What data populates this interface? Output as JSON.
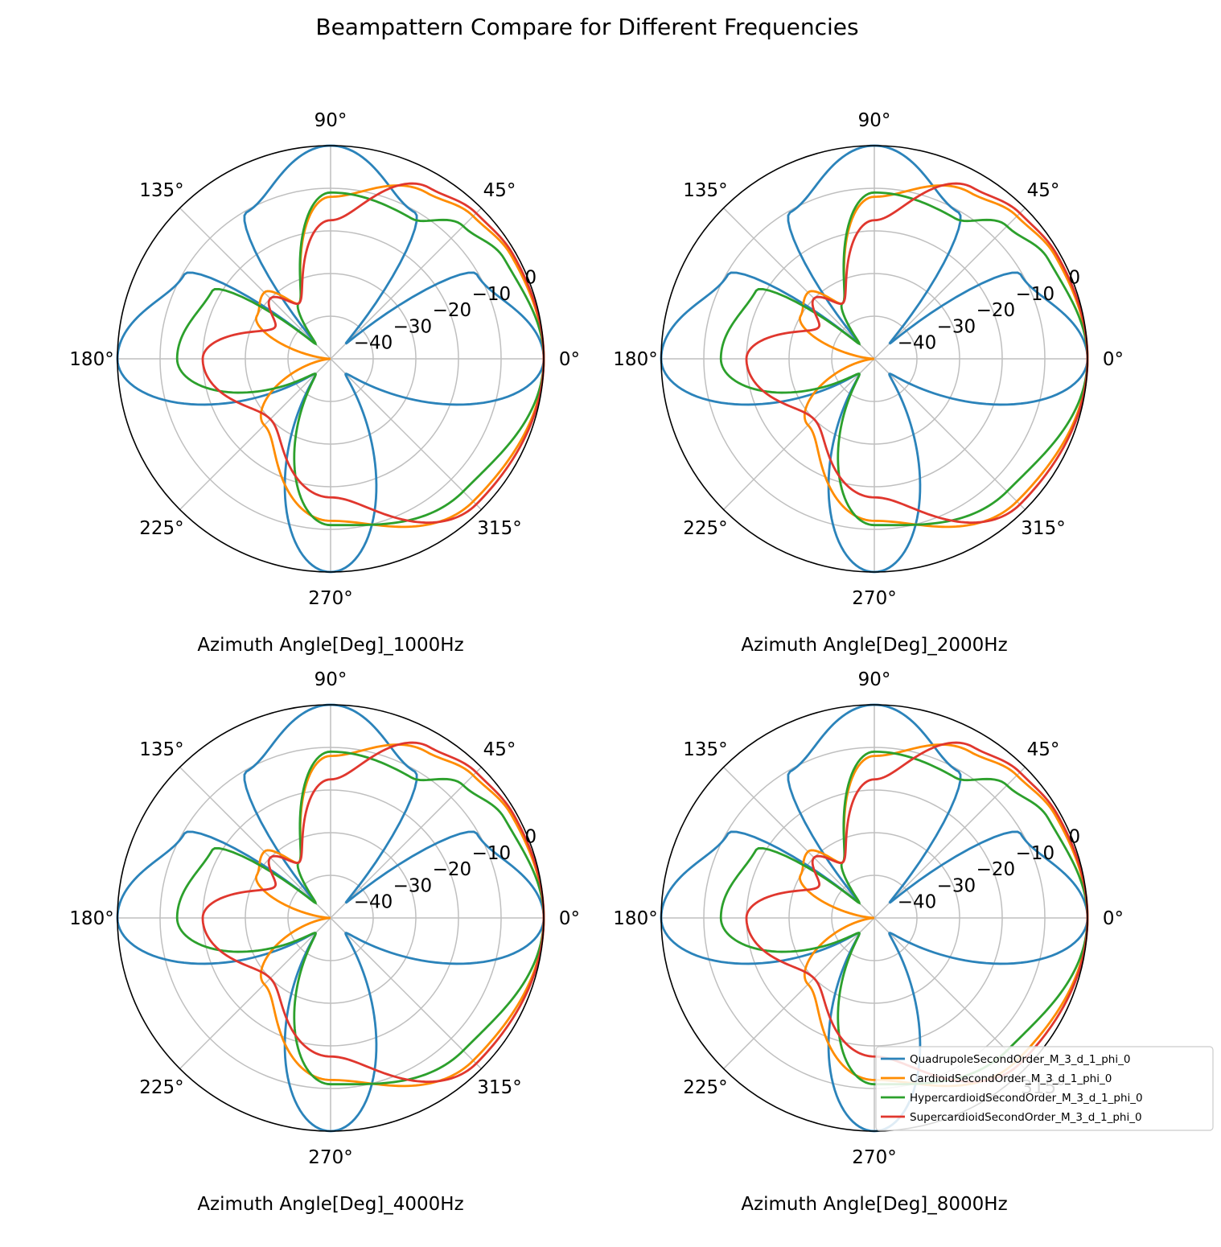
{
  "title": "Beampattern Compare for Different Frequencies",
  "colors": {
    "QuadrupoleSecondOrder_M_3_d_1_phi_0": "#2b83ba",
    "CardioidSecondOrder_M_3_d_1_phi_0": "#ff8c00",
    "HypercardioidSecondOrder_M_3_d_1_phi_0": "#2ca02c",
    "SupercardioidSecondOrder_M_3_d_1_phi_0": "#e0372e",
    "grid": "#bfbfbf",
    "frame": "#000000"
  },
  "legend": {
    "placement": "lower-right of last subplot",
    "entries": [
      "QuadrupoleSecondOrder_M_3_d_1_phi_0",
      "CardioidSecondOrder_M_3_d_1_phi_0",
      "HypercardioidSecondOrder_M_3_d_1_phi_0",
      "SupercardioidSecondOrder_M_3_d_1_phi_0"
    ]
  },
  "chart_data": [
    {
      "type": "polar-line",
      "xlabel": "Azimuth Angle[Deg]_1000Hz",
      "theta_ticks": [
        "0°",
        "45°",
        "90°",
        "135°",
        "180°",
        "225°",
        "270°",
        "315°"
      ],
      "r_ticks": [
        "0",
        "−10",
        "−20",
        "−30",
        "−40"
      ],
      "r_tick_values": [
        0,
        -10,
        -20,
        -30,
        -40
      ],
      "rlim_db": [
        -50,
        0
      ],
      "grid": true,
      "theta_deg": [
        0,
        30,
        45,
        60,
        90,
        120,
        135,
        150,
        180,
        225,
        270,
        315
      ],
      "series": [
        {
          "name": "QuadrupoleSecondOrder_M_3_d_1_phi_0",
          "db": [
            0,
            -10.4,
            -45,
            -10.4,
            0,
            -10.4,
            -45,
            -10.4,
            0,
            -45,
            0,
            -45
          ]
        },
        {
          "name": "CardioidSecondOrder_M_3_d_1_phi_0",
          "db": [
            0,
            -1.2,
            -2.7,
            -5,
            -12,
            -35,
            -28,
            -30,
            -50,
            -28,
            -12,
            -2.7
          ]
        },
        {
          "name": "HypercardioidSecondOrder_M_3_d_1_phi_0",
          "db": [
            0,
            -3,
            -6,
            -12,
            -11,
            -35,
            -45,
            -18,
            -14,
            -45,
            -11,
            -6
          ]
        },
        {
          "name": "SupercardioidSecondOrder_M_3_d_1_phi_0",
          "db": [
            0,
            -0.7,
            -1.7,
            -3.7,
            -17.5,
            -35,
            -30,
            -35,
            -20,
            -30,
            -17.5,
            -1.7
          ]
        }
      ]
    },
    {
      "type": "polar-line",
      "xlabel": "Azimuth Angle[Deg]_2000Hz",
      "theta_ticks": [
        "0°",
        "45°",
        "90°",
        "135°",
        "180°",
        "225°",
        "270°",
        "315°"
      ],
      "r_ticks": [
        "0",
        "−10",
        "−20",
        "−30",
        "−40"
      ],
      "r_tick_values": [
        0,
        -10,
        -20,
        -30,
        -40
      ],
      "rlim_db": [
        -50,
        0
      ],
      "grid": true,
      "theta_deg": [
        0,
        30,
        45,
        60,
        90,
        120,
        135,
        150,
        180,
        225,
        270,
        315
      ],
      "series": [
        {
          "name": "QuadrupoleSecondOrder_M_3_d_1_phi_0",
          "db": [
            0,
            -10.4,
            -45,
            -10.4,
            0,
            -10.4,
            -45,
            -10.4,
            0,
            -45,
            0,
            -45
          ]
        },
        {
          "name": "CardioidSecondOrder_M_3_d_1_phi_0",
          "db": [
            0,
            -1.2,
            -2.7,
            -5,
            -12,
            -35,
            -28,
            -30,
            -50,
            -28,
            -12,
            -2.7
          ]
        },
        {
          "name": "HypercardioidSecondOrder_M_3_d_1_phi_0",
          "db": [
            0,
            -3,
            -6,
            -12,
            -11,
            -35,
            -45,
            -18,
            -14,
            -45,
            -11,
            -6
          ]
        },
        {
          "name": "SupercardioidSecondOrder_M_3_d_1_phi_0",
          "db": [
            0,
            -0.7,
            -1.7,
            -3.7,
            -17.5,
            -35,
            -30,
            -35,
            -20,
            -30,
            -17.5,
            -1.7
          ]
        }
      ]
    },
    {
      "type": "polar-line",
      "xlabel": "Azimuth Angle[Deg]_4000Hz",
      "theta_ticks": [
        "0°",
        "45°",
        "90°",
        "135°",
        "180°",
        "225°",
        "270°",
        "315°"
      ],
      "r_ticks": [
        "0",
        "−10",
        "−20",
        "−30",
        "−40"
      ],
      "r_tick_values": [
        0,
        -10,
        -20,
        -30,
        -40
      ],
      "rlim_db": [
        -50,
        0
      ],
      "grid": true,
      "theta_deg": [
        0,
        30,
        45,
        60,
        90,
        120,
        135,
        150,
        180,
        225,
        270,
        315
      ],
      "series": [
        {
          "name": "QuadrupoleSecondOrder_M_3_d_1_phi_0",
          "db": [
            0,
            -10.4,
            -45,
            -10.4,
            0,
            -10.4,
            -45,
            -10.4,
            0,
            -45,
            0,
            -45
          ]
        },
        {
          "name": "CardioidSecondOrder_M_3_d_1_phi_0",
          "db": [
            0,
            -1.2,
            -2.7,
            -5,
            -12,
            -35,
            -28,
            -30,
            -50,
            -28,
            -12,
            -2.7
          ]
        },
        {
          "name": "HypercardioidSecondOrder_M_3_d_1_phi_0",
          "db": [
            0,
            -3,
            -6,
            -12,
            -11,
            -35,
            -45,
            -18,
            -14,
            -45,
            -11,
            -6
          ]
        },
        {
          "name": "SupercardioidSecondOrder_M_3_d_1_phi_0",
          "db": [
            0,
            -0.7,
            -1.7,
            -3.7,
            -17.5,
            -35,
            -30,
            -35,
            -20,
            -30,
            -17.5,
            -1.7
          ]
        }
      ]
    },
    {
      "type": "polar-line",
      "xlabel": "Azimuth Angle[Deg]_8000Hz",
      "theta_ticks": [
        "0°",
        "45°",
        "90°",
        "135°",
        "180°",
        "225°",
        "270°",
        "315°"
      ],
      "r_ticks": [
        "0",
        "−10",
        "−20",
        "−30",
        "−40"
      ],
      "r_tick_values": [
        0,
        -10,
        -20,
        -30,
        -40
      ],
      "rlim_db": [
        -50,
        0
      ],
      "grid": true,
      "theta_deg": [
        0,
        30,
        45,
        60,
        90,
        120,
        135,
        150,
        180,
        225,
        270,
        315
      ],
      "series": [
        {
          "name": "QuadrupoleSecondOrder_M_3_d_1_phi_0",
          "db": [
            0,
            -10.4,
            -45,
            -10.4,
            0,
            -10.4,
            -45,
            -10.4,
            0,
            -45,
            0,
            -45
          ]
        },
        {
          "name": "CardioidSecondOrder_M_3_d_1_phi_0",
          "db": [
            0,
            -1.2,
            -2.7,
            -5,
            -12,
            -35,
            -28,
            -30,
            -50,
            -28,
            -12,
            -2.7
          ]
        },
        {
          "name": "HypercardioidSecondOrder_M_3_d_1_phi_0",
          "db": [
            0,
            -3,
            -6,
            -12,
            -11,
            -35,
            -45,
            -18,
            -14,
            -45,
            -11,
            -6
          ]
        },
        {
          "name": "SupercardioidSecondOrder_M_3_d_1_phi_0",
          "db": [
            0,
            -0.7,
            -1.7,
            -3.7,
            -17.5,
            -35,
            -30,
            -35,
            -20,
            -30,
            -17.5,
            -1.7
          ]
        }
      ]
    }
  ]
}
